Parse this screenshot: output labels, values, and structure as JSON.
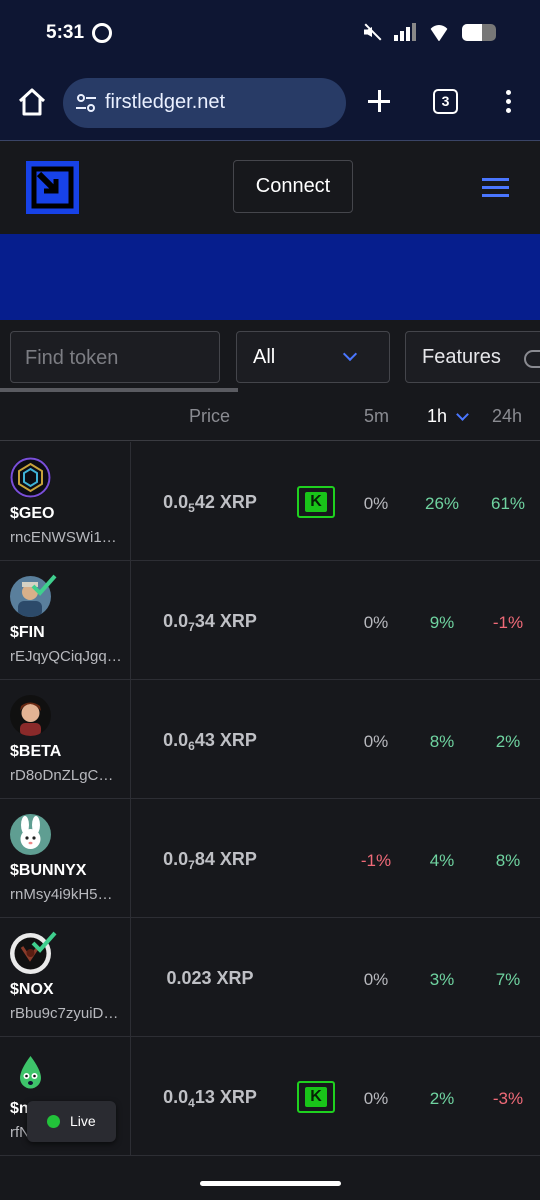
{
  "status_bar": {
    "time": "5:31"
  },
  "browser": {
    "url": "firstledger.net",
    "tab_count": "3"
  },
  "site": {
    "connect_label": "Connect"
  },
  "filters": {
    "search_placeholder": "Find token",
    "category": "All",
    "features": "Features"
  },
  "columns": {
    "price": "Price",
    "m5": "5m",
    "h1": "1h",
    "h24": "24h"
  },
  "colors": {
    "accent": "#4a76ff",
    "logo": "#1742e8",
    "banner": "#061e8d",
    "positive": "#6fd3a0",
    "negative": "#f06a78",
    "badge": "#19c419"
  },
  "tokens": [
    {
      "symbol": "$GEO",
      "address": "rncENWSWi1…",
      "price_lead": "0.0",
      "price_zeros": "5",
      "price_rest": "42 XRP",
      "badge": "K",
      "m5": "0%",
      "h1": "26%",
      "h24": "61%",
      "verified": false,
      "avatar_icon": "geo-logo-icon"
    },
    {
      "symbol": "$FIN",
      "address": "rEJqyQCiqJgq…",
      "price_lead": "0.0",
      "price_zeros": "7",
      "price_rest": "34 XRP",
      "badge": "",
      "m5": "0%",
      "h1": "9%",
      "h24": "-1%",
      "verified": true,
      "avatar_icon": "fin-avatar-icon"
    },
    {
      "symbol": "$BETA",
      "address": "rD8oDnZLgC…",
      "price_lead": "0.0",
      "price_zeros": "6",
      "price_rest": "43 XRP",
      "badge": "",
      "m5": "0%",
      "h1": "8%",
      "h24": "2%",
      "verified": false,
      "avatar_icon": "beta-avatar-icon"
    },
    {
      "symbol": "$BUNNYX",
      "address": "rnMsy4i9kH5…",
      "price_lead": "0.0",
      "price_zeros": "7",
      "price_rest": "84 XRP",
      "badge": "",
      "m5": "-1%",
      "h1": "4%",
      "h24": "8%",
      "verified": false,
      "avatar_icon": "bunny-avatar-icon"
    },
    {
      "symbol": "$NOX",
      "address": "rBbu9c7zyuiD…",
      "price_lead": "0.023 XRP",
      "price_zeros": "",
      "price_rest": "",
      "badge": "",
      "m5": "0%",
      "h1": "3%",
      "h24": "7%",
      "verified": true,
      "avatar_icon": "nox-avatar-icon"
    },
    {
      "symbol": "$n",
      "address": "rfN",
      "price_lead": "0.0",
      "price_zeros": "4",
      "price_rest": "13 XRP",
      "badge": "K",
      "m5": "0%",
      "h1": "2%",
      "h24": "-3%",
      "verified": false,
      "avatar_icon": "drop-avatar-icon"
    }
  ],
  "live": {
    "label": "Live"
  }
}
